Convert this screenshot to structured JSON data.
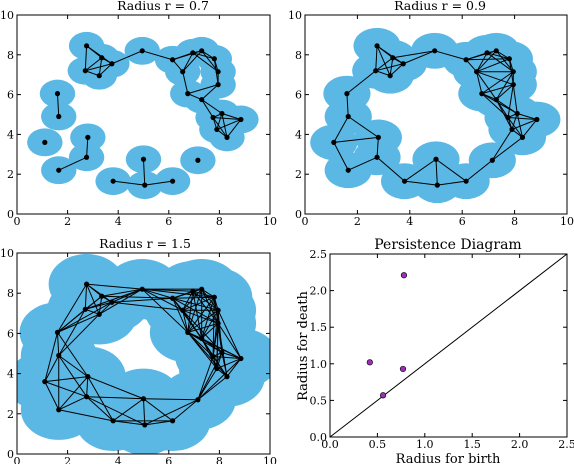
{
  "colors": {
    "ball": "#5bb8e4",
    "vertex": "#000000",
    "diagram_point": "#9b2fb5",
    "edge": "#000000"
  },
  "points": [
    [
      1.1,
      3.6
    ],
    [
      1.65,
      2.2
    ],
    [
      1.65,
      4.9
    ],
    [
      1.6,
      6.05
    ],
    [
      2.8,
      3.85
    ],
    [
      2.75,
      2.85
    ],
    [
      2.75,
      8.45
    ],
    [
      2.7,
      7.2
    ],
    [
      3.25,
      6.95
    ],
    [
      3.35,
      7.85
    ],
    [
      3.75,
      7.55
    ],
    [
      3.8,
      1.65
    ],
    [
      5.0,
      2.75
    ],
    [
      5.05,
      1.45
    ],
    [
      4.95,
      8.2
    ],
    [
      6.15,
      1.65
    ],
    [
      6.15,
      7.75
    ],
    [
      6.55,
      7.15
    ],
    [
      6.75,
      6.05
    ],
    [
      6.95,
      8.1
    ],
    [
      7.15,
      2.7
    ],
    [
      7.3,
      5.75
    ],
    [
      7.3,
      8.2
    ],
    [
      7.8,
      7.8
    ],
    [
      7.95,
      6.5
    ],
    [
      7.95,
      7.15
    ],
    [
      7.75,
      4.85
    ],
    [
      7.9,
      4.25
    ],
    [
      8.3,
      3.85
    ],
    [
      8.1,
      5.05
    ],
    [
      8.85,
      4.75
    ]
  ],
  "chart_data": [
    {
      "type": "scatter",
      "title": "Radius r = 0.7",
      "radius": 0.7,
      "xlim": [
        0,
        10
      ],
      "ylim": [
        0,
        10
      ],
      "xticks": [
        "0",
        "2",
        "4",
        "6",
        "8",
        "10"
      ],
      "yticks": [
        "0",
        "2",
        "4",
        "6",
        "8",
        "10"
      ]
    },
    {
      "type": "scatter",
      "title": "Radius r = 0.9",
      "radius": 0.9,
      "xlim": [
        0,
        10
      ],
      "ylim": [
        0,
        10
      ],
      "xticks": [
        "0",
        "2",
        "4",
        "6",
        "8",
        "10"
      ],
      "yticks": [
        "0",
        "2",
        "4",
        "6",
        "8",
        "10"
      ]
    },
    {
      "type": "scatter",
      "title": "Radius r = 1.5",
      "radius": 1.5,
      "xlim": [
        0,
        10
      ],
      "ylim": [
        0,
        10
      ],
      "xticks": [
        "0",
        "2",
        "4",
        "6",
        "8",
        "10"
      ],
      "yticks": [
        "0",
        "2",
        "4",
        "6",
        "8",
        "10"
      ]
    },
    {
      "type": "scatter",
      "title": "Persistence Diagram",
      "xlabel": "Radius for birth",
      "ylabel": "Radius for death",
      "xlim": [
        0,
        2.5
      ],
      "ylim": [
        0,
        2.5
      ],
      "xticks": [
        "0.0",
        "0.5",
        "1.0",
        "1.5",
        "2.0",
        "2.5"
      ],
      "yticks": [
        "0.0",
        "0.5",
        "1.0",
        "1.5",
        "2.0",
        "2.5"
      ],
      "diagonal": true,
      "points": [
        {
          "birth": 0.78,
          "death": 2.21
        },
        {
          "birth": 0.42,
          "death": 1.02
        },
        {
          "birth": 0.77,
          "death": 0.93
        },
        {
          "birth": 0.56,
          "death": 0.57
        }
      ]
    }
  ]
}
